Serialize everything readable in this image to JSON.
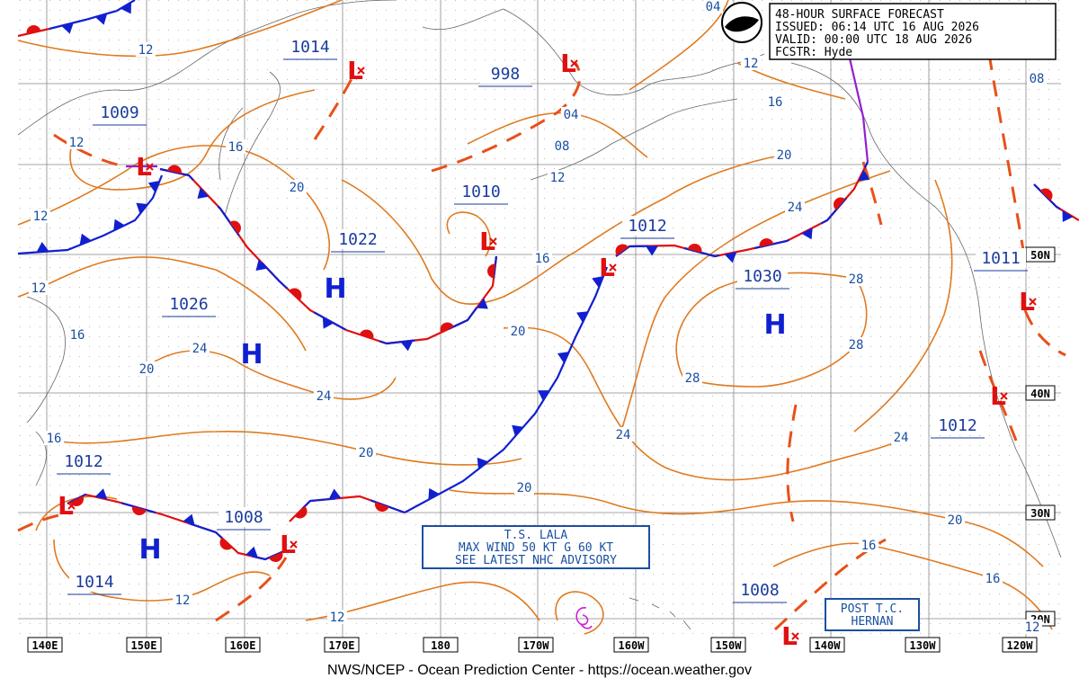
{
  "header": {
    "lines": [
      "48-HOUR SURFACE FORECAST",
      "ISSUED: 06:14 UTC 16 AUG 2026",
      "VALID:  00:00 UTC 18 AUG 2026",
      "FCSTR:   Hyde"
    ]
  },
  "longitudes": [
    "140E",
    "150E",
    "160E",
    "170E",
    "180",
    "170W",
    "160W",
    "150W",
    "140W",
    "130W",
    "120W"
  ],
  "latitudes": [
    "50N",
    "40N",
    "30N",
    "20N"
  ],
  "highs": [
    "H",
    "H",
    "H",
    "H"
  ],
  "lows": [
    "L",
    "L",
    "L",
    "L",
    "L",
    "L",
    "L",
    "L",
    "L",
    "L"
  ],
  "pressure_labels": [
    "1014",
    "998",
    "1009",
    "1010",
    "1022",
    "1012",
    "1026",
    "1030",
    "1011",
    "1012",
    "1012",
    "1008",
    "1014",
    "1008"
  ],
  "isobar_labels": [
    "12",
    "04",
    "12",
    "16",
    "04",
    "08",
    "12",
    "20",
    "24",
    "12",
    "16",
    "20",
    "12",
    "16",
    "28",
    "12",
    "24",
    "16",
    "20",
    "28",
    "20",
    "24",
    "28",
    "24",
    "24",
    "16",
    "20",
    "20",
    "20",
    "16",
    "16",
    "12",
    "12",
    "12",
    "08"
  ],
  "annotations": [
    {
      "lines": [
        "T.S. LALA",
        "MAX WIND 50 KT G 60 KT",
        "SEE LATEST NHC ADVISORY"
      ]
    },
    {
      "lines": [
        "POST T.C.",
        "HERNAN"
      ]
    }
  ],
  "footer": "NWS/NCEP - Ocean Prediction Center - https://ocean.weather.gov"
}
